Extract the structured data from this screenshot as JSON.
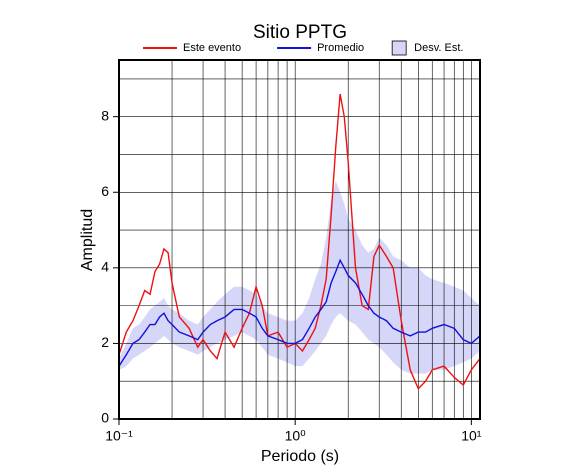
{
  "chart_data": {
    "type": "line",
    "title": "Sitio PPTG",
    "xlabel": "Periodo (s)",
    "ylabel": "Amplitud",
    "xscale": "log",
    "xlim": [
      0.1,
      11.2
    ],
    "ylim": [
      0,
      9.5
    ],
    "xticks": [
      {
        "value": 0.1,
        "label": "10⁻¹"
      },
      {
        "value": 1,
        "label": "10⁰"
      },
      {
        "value": 10,
        "label": "10¹"
      }
    ],
    "xgrid": [
      0.2,
      0.3,
      0.4,
      0.5,
      0.6,
      0.7,
      0.8,
      0.9,
      2,
      3,
      4,
      5,
      6,
      7,
      8,
      9
    ],
    "yticks": [
      0,
      2,
      4,
      6,
      8
    ],
    "ygrid": [
      1,
      3,
      5,
      7,
      9
    ],
    "x": [
      0.1,
      0.11,
      0.12,
      0.13,
      0.14,
      0.15,
      0.16,
      0.17,
      0.18,
      0.19,
      0.2,
      0.22,
      0.25,
      0.28,
      0.3,
      0.33,
      0.36,
      0.4,
      0.45,
      0.5,
      0.55,
      0.6,
      0.65,
      0.7,
      0.8,
      0.9,
      1.0,
      1.1,
      1.2,
      1.3,
      1.4,
      1.5,
      1.6,
      1.7,
      1.8,
      1.9,
      2.0,
      2.2,
      2.4,
      2.6,
      2.8,
      3.0,
      3.3,
      3.6,
      4.0,
      4.5,
      5.0,
      5.5,
      6,
      7,
      8,
      9,
      10,
      11.2
    ],
    "series": [
      {
        "name": "Este evento",
        "color": "#ee1111",
        "values": [
          1.7,
          2.3,
          2.6,
          3.0,
          3.4,
          3.3,
          3.9,
          4.1,
          4.5,
          4.4,
          3.6,
          2.7,
          2.4,
          1.9,
          2.1,
          1.8,
          1.6,
          2.3,
          1.9,
          2.4,
          2.8,
          3.5,
          3.0,
          2.2,
          2.3,
          1.9,
          2.0,
          1.8,
          2.1,
          2.4,
          3.0,
          3.7,
          5.4,
          7.2,
          8.6,
          8.0,
          6.8,
          4.0,
          3.0,
          2.9,
          4.3,
          4.6,
          4.3,
          4.0,
          2.6,
          1.3,
          0.8,
          1.0,
          1.3,
          1.4,
          1.1,
          0.9,
          1.3,
          1.6
        ]
      },
      {
        "name": "Promedio",
        "color": "#1111dd",
        "values": [
          1.4,
          1.7,
          2.0,
          2.1,
          2.3,
          2.5,
          2.5,
          2.7,
          2.8,
          2.6,
          2.5,
          2.3,
          2.2,
          2.1,
          2.3,
          2.5,
          2.6,
          2.7,
          2.9,
          2.9,
          2.8,
          2.7,
          2.4,
          2.2,
          2.1,
          2.0,
          2.0,
          2.1,
          2.4,
          2.7,
          2.9,
          3.1,
          3.6,
          3.9,
          4.2,
          4.0,
          3.8,
          3.6,
          3.3,
          3.0,
          2.8,
          2.7,
          2.6,
          2.4,
          2.3,
          2.2,
          2.3,
          2.3,
          2.4,
          2.5,
          2.4,
          2.1,
          2.0,
          2.2
        ]
      }
    ],
    "band": {
      "name": "Desv. Est.",
      "color": "#d6d6f8",
      "lower": [
        1.3,
        1.4,
        1.6,
        1.7,
        1.8,
        1.9,
        2.0,
        2.1,
        2.2,
        2.1,
        2.0,
        1.9,
        1.8,
        1.7,
        1.8,
        1.9,
        2.0,
        2.1,
        2.2,
        2.3,
        2.2,
        2.1,
        1.9,
        1.7,
        1.6,
        1.5,
        1.4,
        1.4,
        1.6,
        1.8,
        2.0,
        2.2,
        2.5,
        2.7,
        2.8,
        2.7,
        2.6,
        2.5,
        2.3,
        2.1,
        2.0,
        1.9,
        1.7,
        1.5,
        1.3,
        1.2,
        1.2,
        1.2,
        1.3,
        1.3,
        1.4,
        1.5,
        1.6,
        1.8
      ],
      "upper": [
        1.6,
        2.0,
        2.4,
        2.5,
        2.7,
        2.9,
        3.0,
        3.1,
        3.2,
        3.0,
        2.9,
        2.8,
        2.6,
        2.5,
        2.7,
        2.9,
        3.1,
        3.3,
        3.5,
        3.5,
        3.4,
        3.3,
        3.0,
        2.8,
        2.7,
        2.6,
        2.6,
        2.8,
        3.2,
        3.7,
        4.1,
        4.8,
        5.8,
        6.3,
        6.0,
        5.7,
        5.3,
        5.0,
        4.6,
        4.4,
        4.5,
        4.8,
        4.6,
        4.3,
        4.2,
        4.0,
        4.0,
        3.8,
        3.7,
        3.6,
        3.5,
        3.4,
        3.2,
        3.0
      ]
    },
    "grid": true
  }
}
